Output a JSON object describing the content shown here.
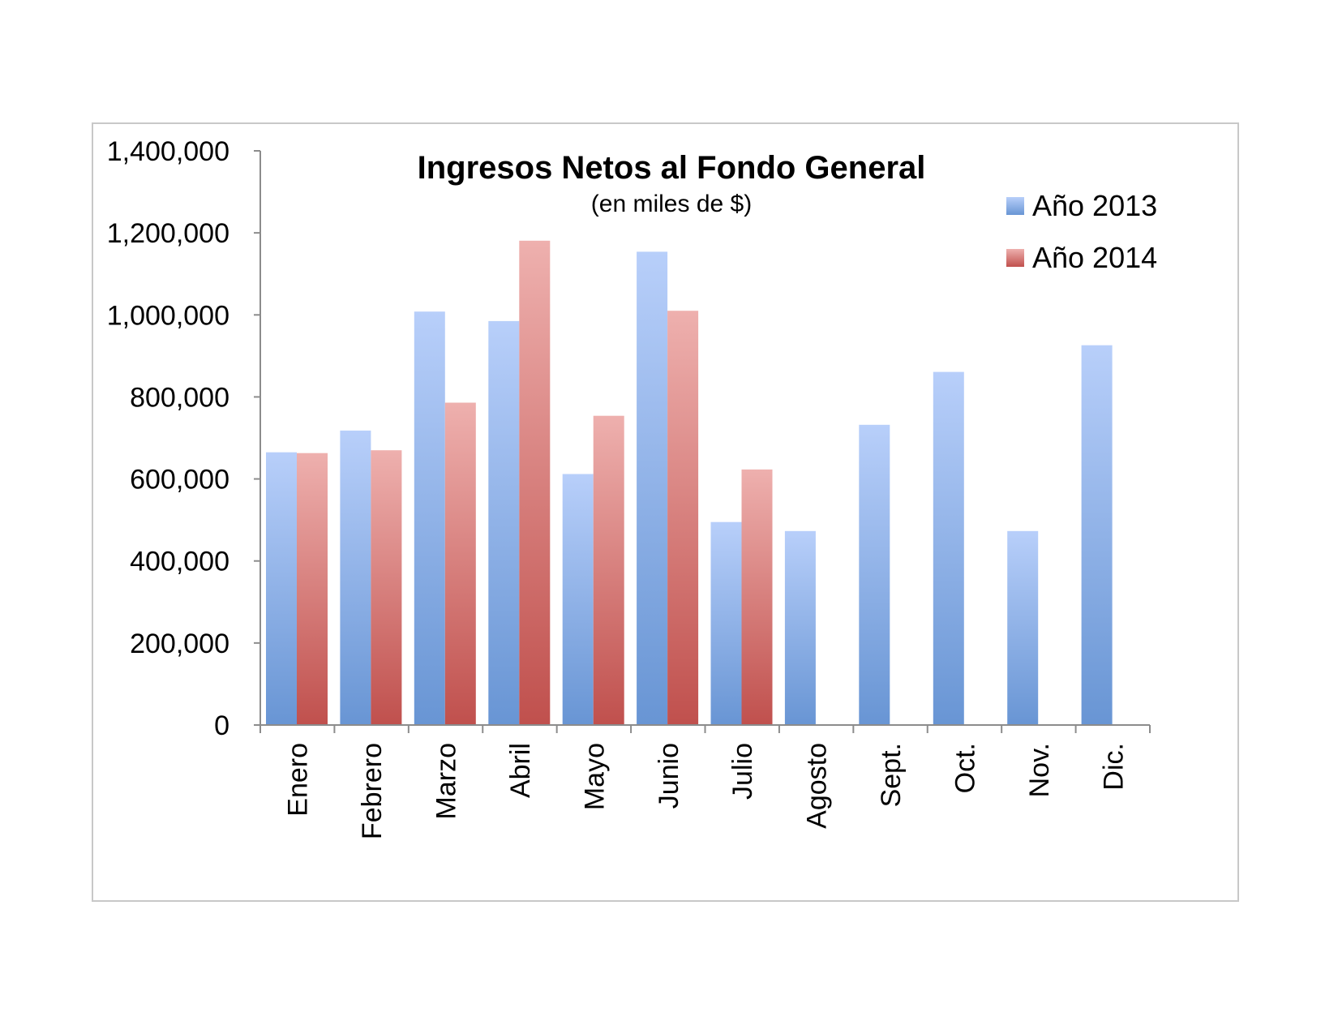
{
  "chart_data": {
    "type": "bar",
    "title": "Ingresos Netos al Fondo General",
    "subtitle": "(en miles de $)",
    "xlabel": "",
    "ylabel": "",
    "ylim": [
      0,
      1400000
    ],
    "yticks": [
      0,
      200000,
      400000,
      600000,
      800000,
      1000000,
      1200000,
      1400000
    ],
    "ytick_labels": [
      "0",
      "200,000",
      "400,000",
      "600,000",
      "800,000",
      "1,000,000",
      "1,200,000",
      "1,400,000"
    ],
    "grid": false,
    "legend_position": "top-right",
    "categories": [
      "Enero",
      "Febrero",
      "Marzo",
      "Abril",
      "Mayo",
      "Junio",
      "Julio",
      "Agosto",
      "Sept.",
      "Oct.",
      "Nov.",
      "Dic."
    ],
    "series": [
      {
        "name": "Año 2013",
        "color": "#6b98d6",
        "color_light": "#b4cbf7",
        "values": [
          665000,
          718000,
          1008000,
          985000,
          612000,
          1154000,
          495000,
          473000,
          732000,
          861000,
          473000,
          926000
        ]
      },
      {
        "name": "Año 2014",
        "color": "#c0504d",
        "color_light": "#eaacaa",
        "values": [
          663000,
          670000,
          786000,
          1181000,
          754000,
          1010000,
          623000,
          null,
          null,
          null,
          null,
          null
        ]
      }
    ]
  }
}
